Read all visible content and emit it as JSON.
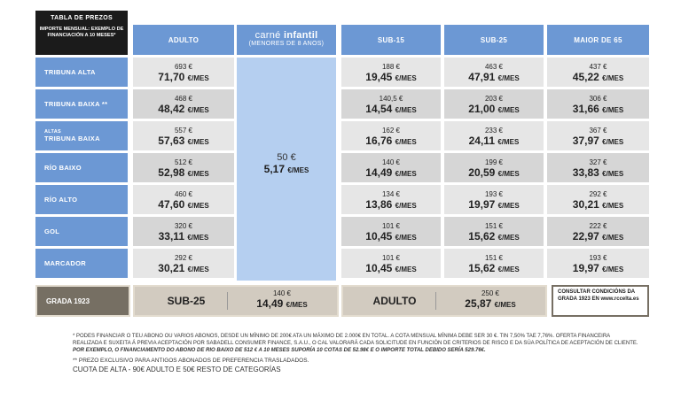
{
  "header": {
    "title": "TABLA DE PREZOS",
    "subtitle": "IMPORTE MENSUAL: EXEMPLO DE FINANCIACIÓN A 10 MESES*"
  },
  "columns": {
    "adulto": "ADULTO",
    "infantil_main_a": "carné",
    "infantil_main_b": "infantil",
    "infantil_sub": "(MENORES DE 8 ANOS)",
    "sub15": "SUB-15",
    "sub25": "SUB-25",
    "maior65": "MAIOR DE 65"
  },
  "unit": "€/MES",
  "rows": [
    {
      "label_pre": "",
      "label": "TRIBUNA ALTA",
      "adulto": [
        "693 €",
        "71,70"
      ],
      "sub15": [
        "188 €",
        "19,45"
      ],
      "sub25": [
        "463 €",
        "47,91"
      ],
      "maior65": [
        "437 €",
        "45,22"
      ]
    },
    {
      "label_pre": "",
      "label": "TRIBUNA BAIXA **",
      "adulto": [
        "468 €",
        "48,42"
      ],
      "sub15": [
        "140,5 €",
        "14,54"
      ],
      "sub25": [
        "203 €",
        "21,00"
      ],
      "maior65": [
        "306 €",
        "31,66"
      ]
    },
    {
      "label_pre": "ALTAS",
      "label": "TRIBUNA BAIXA",
      "adulto": [
        "557 €",
        "57,63"
      ],
      "sub15": [
        "162 €",
        "16,76"
      ],
      "sub25": [
        "233 €",
        "24,11"
      ],
      "maior65": [
        "367 €",
        "37,97"
      ]
    },
    {
      "label_pre": "",
      "label": "RÍO BAIXO",
      "adulto": [
        "512 €",
        "52,98"
      ],
      "sub15": [
        "140 €",
        "14,49"
      ],
      "sub25": [
        "199 €",
        "20,59"
      ],
      "maior65": [
        "327 €",
        "33,83"
      ]
    },
    {
      "label_pre": "",
      "label": "RÍO ALTO",
      "adulto": [
        "460 €",
        "47,60"
      ],
      "sub15": [
        "134 €",
        "13,86"
      ],
      "sub25": [
        "193 €",
        "19,97"
      ],
      "maior65": [
        "292 €",
        "30,21"
      ]
    },
    {
      "label_pre": "",
      "label": "GOL",
      "adulto": [
        "320 €",
        "33,11"
      ],
      "sub15": [
        "101 €",
        "10,45"
      ],
      "sub25": [
        "151 €",
        "15,62"
      ],
      "maior65": [
        "222 €",
        "22,97"
      ]
    },
    {
      "label_pre": "",
      "label": "MARCADOR",
      "adulto": [
        "292 €",
        "30,21"
      ],
      "sub15": [
        "101 €",
        "10,45"
      ],
      "sub25": [
        "151 €",
        "15,62"
      ],
      "maior65": [
        "193 €",
        "19,97"
      ]
    }
  ],
  "infantil": {
    "price": "50 €",
    "monthly": "5,17"
  },
  "grada": {
    "label": "GRADA 1923",
    "sub25_name": "SUB-25",
    "sub25_price": "140 €",
    "sub25_monthly": "14,49",
    "adulto_name": "ADULTO",
    "adulto_price": "250 €",
    "adulto_monthly": "25,87",
    "consult": "CONSULTAR CONDICIÓNS DA GRADA 1923 EN www.rccelta.es"
  },
  "notes": {
    "n1": "* PODES FINANCIAR O TEU ABONO OU VARIOS ABONOS, DESDE UN MÍNIMO DE 200€ ATA UN MÁXIMO DE 2.000€ EN TOTAL. A COTA MENSUAL MÍNIMA DEBE SER 30 €. TIN 7,50% TAE 7,76%. OFERTA FINANCEIRA REALIZADA E SUXEITA Á PREVIA ACEPTACIÓN POR SABADELL CONSUMER FINANCE, S.A.U., O CAL VALORARÁ  CADA SOLICITUDE EN FUNCIÓN DE CRITERIOS DE RISCO E DA SÚA POLÍTICA DE ACEPTACIÓN DE CLIENTE.",
    "n1_italic": "POR EXEMPLO, O FINANCIAMENTO DO ABONO DE RIO BAIXO DE 512 € A 10 MESES SUPORÍA 10 COTAS DE 52.98€ E O IMPORTE TOTAL DEBIDO SERÍA 529.76€.",
    "n2": "** PREZO  EXCLUSIVO PARA ANTIGOS ABONADOS DE PREFERENCIA TRASLADADOS.",
    "n3": "CUOTA DE ALTA  - 90€ ADULTO E 50€ RESTO DE CATEGORÍAS"
  }
}
